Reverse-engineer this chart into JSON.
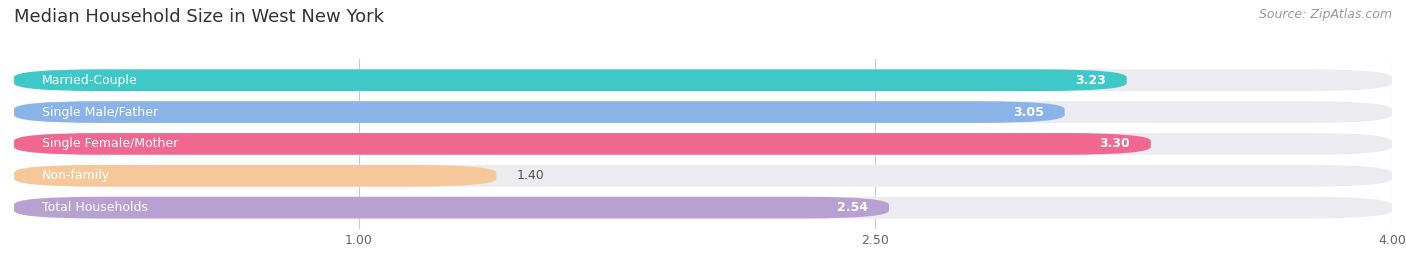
{
  "title": "Median Household Size in West New York",
  "source": "Source: ZipAtlas.com",
  "categories": [
    "Married-Couple",
    "Single Male/Father",
    "Single Female/Mother",
    "Non-family",
    "Total Households"
  ],
  "values": [
    3.23,
    3.05,
    3.3,
    1.4,
    2.54
  ],
  "bar_colors": [
    "#3ec8c8",
    "#8ab4e8",
    "#f06890",
    "#f5c89a",
    "#b8a0d0"
  ],
  "xlim": [
    0,
    4.0
  ],
  "xmin": 0.0,
  "xmax": 4.0,
  "xticks": [
    1.0,
    2.5,
    4.0
  ],
  "xticklabels": [
    "1.00",
    "2.50",
    "4.00"
  ],
  "title_fontsize": 13,
  "source_fontsize": 9,
  "label_fontsize": 9,
  "value_fontsize": 9,
  "background_color": "#ffffff",
  "panel_bg_color": "#ebebf0",
  "bar_height": 0.68,
  "bar_gap": 0.32
}
